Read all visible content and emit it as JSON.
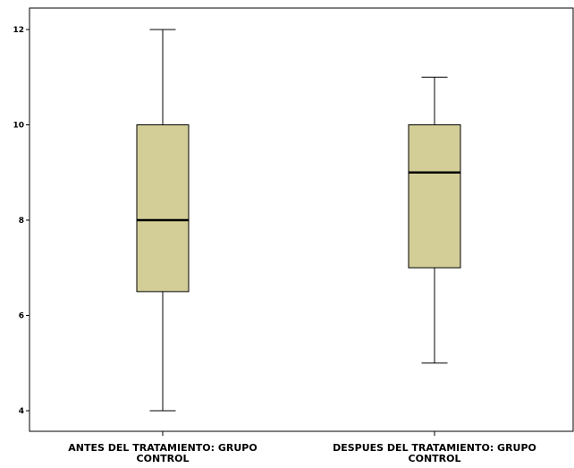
{
  "chart_data": {
    "type": "boxplot",
    "title": "",
    "xlabel": "",
    "ylabel": "",
    "ylim": [
      3.5,
      12.4
    ],
    "yticks": [
      4,
      6,
      8,
      10,
      12
    ],
    "yticks_text": [
      "4",
      "6",
      "8",
      "10",
      "12"
    ],
    "grid": false,
    "legend": "none",
    "categories": [
      {
        "line1": "ANTES DEL TRATAMIENTO: GRUPO",
        "line2": "CONTROL"
      },
      {
        "line1": "DESPUES DEL TRATAMIENTO: GRUPO",
        "line2": "CONTROL"
      }
    ],
    "boxes": [
      {
        "min": 4,
        "q1": 6.5,
        "median": 8,
        "q3": 10,
        "max": 12
      },
      {
        "min": 5,
        "q1": 7,
        "median": 9,
        "q3": 10,
        "max": 11
      }
    ],
    "box_color": "#d3ce97"
  }
}
